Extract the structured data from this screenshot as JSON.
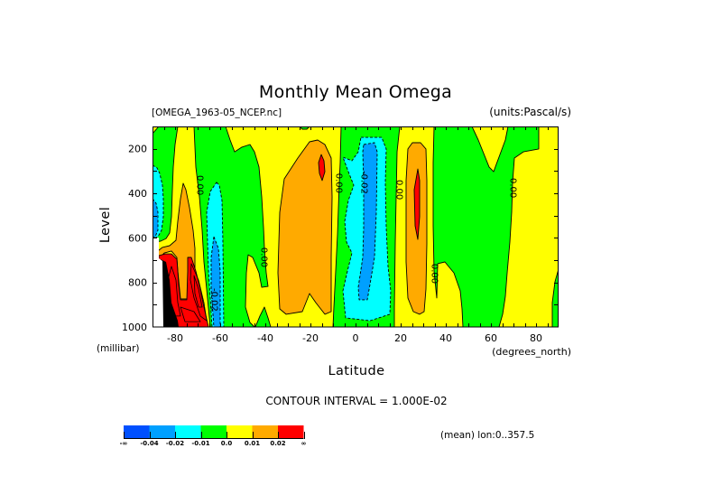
{
  "header": {
    "file_label": "[OMEGA_1963-05_NCEP.nc]",
    "units_label": "(units:Pascal/s)"
  },
  "footer": {
    "contour_interval": "CONTOUR INTERVAL = 1.000E-02",
    "mean_label": "(mean) lon:0..357.5"
  },
  "chart_data": {
    "type": "heatmap",
    "title": "Monthly Mean Omega",
    "xlabel": "Latitude",
    "xunits": "(degrees_north)",
    "ylabel": "Level",
    "yunits": "(millibar)",
    "xlim": [
      -90,
      90
    ],
    "ylim": [
      1000,
      100
    ],
    "xticks": [
      -80,
      -60,
      -40,
      -20,
      0,
      20,
      40,
      60,
      80
    ],
    "yticks": [
      200,
      400,
      600,
      800,
      1000
    ],
    "x_minor_step": 5,
    "y_minor_step": 100,
    "grid": false,
    "legend": "bottom-left",
    "background_band": "yellow",
    "missing_color": "#ffffff",
    "dense_color": "#000000",
    "colorbar": {
      "bands": [
        {
          "name": "blue",
          "color": "#0050ff"
        },
        {
          "name": "sky",
          "color": "#00a0ff"
        },
        {
          "name": "cyan",
          "color": "#00ffff"
        },
        {
          "name": "green",
          "color": "#00ff00"
        },
        {
          "name": "yellow",
          "color": "#ffff00"
        },
        {
          "name": "orange",
          "color": "#ffaa00"
        },
        {
          "name": "red",
          "color": "#ff0000"
        }
      ],
      "labels": [
        "-∞",
        "-0.04",
        "-0.02",
        "-0.01",
        "0.0",
        "0.01",
        "0.02",
        "∞"
      ]
    },
    "regions": [
      {
        "band": "green",
        "lat": [
          -87.2,
          -78.8,
          -80.0,
          -80.8,
          -81.2,
          -81.6,
          -82.4,
          -84.0,
          -86.4,
          -90,
          -90
        ],
        "lev": [
          100,
          100,
          181,
          282,
          384,
          505,
          578,
          603,
          615,
          619,
          132
        ]
      },
      {
        "band": "green",
        "lat": [
          -71.6,
          -57.6,
          -55.6,
          -53.6,
          -50.4,
          -46.8,
          -44.8,
          -42.8,
          -41.6,
          -40.8,
          -40.4,
          -39.6,
          -38.8,
          -41.6,
          -42.8,
          -45.6,
          -47.6,
          -48.4,
          -48.8,
          -46.8,
          -44.8,
          -64.4,
          -66.0,
          -67.2,
          -68.0,
          -69.2,
          -70.8
        ],
        "lev": [
          100,
          100,
          161,
          214,
          193,
          181,
          214,
          282,
          416,
          554,
          647,
          757,
          818,
          822,
          757,
          688,
          676,
          757,
          911,
          980,
          1000,
          1000,
          830,
          708,
          566,
          416,
          282
        ]
      },
      {
        "band": "green",
        "lat": [
          -44.4,
          -42.4,
          -40.4,
          -38.8,
          -37.6
        ],
        "lev": [
          1000,
          951,
          911,
          959,
          1000
        ]
      },
      {
        "band": "green",
        "lat": [
          -24.8,
          -20.4,
          -21.6,
          -23.6
        ],
        "lev": [
          100,
          100,
          112,
          112
        ]
      },
      {
        "band": "green",
        "lat": [
          -6.4,
          19.6,
          18.4,
          17.6,
          17.2,
          17.2,
          -10.0,
          -9.6,
          -8.8,
          -8.0,
          -7.2,
          -6.8
        ],
        "lev": [
          100,
          100,
          214,
          619,
          911,
          1000,
          1000,
          911,
          749,
          586,
          351,
          262
        ]
      },
      {
        "band": "green",
        "lat": [
          34.8,
          51.6,
          54.4,
          59.2,
          61.2,
          62.4,
          66.4,
          67.6,
          81.2,
          81.2,
          74.4,
          70.4,
          69.6,
          69.2,
          68.4,
          67.2,
          66.4,
          65.2,
          63.6,
          47.6,
          47.2,
          46.4,
          43.6,
          39.6,
          36.4,
          36.0,
          34.8,
          34.4,
          34.4
        ],
        "lev": [
          100,
          100,
          161,
          282,
          303,
          270,
          161,
          100,
          100,
          201,
          214,
          242,
          351,
          485,
          619,
          757,
          862,
          943,
          1000,
          1000,
          919,
          838,
          757,
          708,
          716,
          870,
          749,
          546,
          262
        ]
      },
      {
        "band": "green",
        "lat": [
          90,
          88.4,
          87.2,
          87.2,
          90
        ],
        "lev": [
          740,
          797,
          891,
          1000,
          1000
        ]
      },
      {
        "band": "cyan",
        "lat": [
          -90,
          -88.0,
          -86.8,
          -85.6,
          -85.2,
          -85.2,
          -86.0,
          -87.6,
          -90
        ],
        "lev": [
          274,
          286,
          311,
          364,
          424,
          505,
          566,
          595,
          603
        ]
      },
      {
        "band": "cyan",
        "lat": [
          -61.6,
          -60.4,
          -59.2,
          -58.8,
          -58.4,
          -63.6,
          -64.4,
          -65.2,
          -65.6,
          -66.0,
          -64.4
        ],
        "lev": [
          351,
          364,
          432,
          619,
          1000,
          1000,
          870,
          749,
          619,
          485,
          392
        ]
      },
      {
        "band": "cyan",
        "lat": [
          2.4,
          11.6,
          13.6,
          13.2,
          13.6,
          14.4,
          15.6,
          15.2,
          6.4,
          -4.4,
          -5.6,
          -3.6,
          -1.6,
          -4.0,
          -4.8,
          -3.2,
          -0.8,
          -3.2,
          -5.6,
          -1.6,
          1.2
        ],
        "lev": [
          149,
          149,
          201,
          351,
          554,
          728,
          838,
          943,
          972,
          959,
          838,
          749,
          668,
          619,
          526,
          432,
          364,
          303,
          238,
          254,
          214
        ]
      },
      {
        "band": "sky",
        "lat": [
          -90,
          -88.4,
          -87.6,
          -87.6,
          -88.8,
          -90
        ],
        "lev": [
          424,
          445,
          485,
          566,
          595,
          599
        ]
      },
      {
        "band": "sky",
        "lat": [
          -62.8,
          -60.8,
          -60.0,
          -60.0,
          -62.8,
          -64.0,
          -64.0
        ],
        "lev": [
          595,
          647,
          749,
          1000,
          1000,
          830,
          688
        ]
      },
      {
        "band": "sky",
        "lat": [
          3.6,
          8.4,
          9.6,
          9.2,
          8.4,
          6.4,
          5.2,
          1.6,
          1.2,
          3.2,
          3.6,
          3.6,
          3.2
        ],
        "lev": [
          181,
          173,
          214,
          485,
          688,
          809,
          878,
          878,
          822,
          688,
          554,
          351,
          214
        ]
      },
      {
        "band": "orange",
        "lat": [
          -76.4,
          -75.2,
          -73.6,
          -72.0,
          -71.2,
          -71.2,
          -71.6,
          -73.6,
          -77.6,
          -78.8,
          -79.2,
          -81.6,
          -84.8,
          -87.2,
          -87.6,
          -85.6,
          -82.4,
          -79.6,
          -78.8,
          -77.6
        ],
        "lev": [
          355,
          384,
          465,
          566,
          647,
          749,
          850,
          874,
          874,
          749,
          688,
          659,
          668,
          696,
          659,
          643,
          635,
          611,
          526,
          424
        ]
      },
      {
        "band": "orange",
        "lat": [
          -20.4,
          -16.8,
          -13.6,
          -10.8,
          -10.4,
          -10.8,
          -10.8,
          -13.6,
          -17.6,
          -20.4,
          -23.6,
          -30.8,
          -33.6,
          -34.4,
          -33.6,
          -31.6,
          -25.6
        ],
        "lev": [
          169,
          161,
          181,
          242,
          416,
          688,
          931,
          943,
          891,
          850,
          931,
          943,
          919,
          757,
          485,
          335,
          242
        ]
      },
      {
        "band": "orange",
        "lat": [
          23.2,
          25.2,
          28.8,
          31.2,
          31.6,
          31.6,
          31.2,
          30.4,
          28.4,
          25.6,
          23.2,
          22.4,
          22.4
        ],
        "lev": [
          201,
          173,
          173,
          201,
          343,
          627,
          830,
          931,
          943,
          931,
          870,
          708,
          343
        ]
      },
      {
        "band": "red",
        "lat": [
          -87.2,
          -84.4,
          -81.6,
          -79.2,
          -78.8,
          -78.4,
          -77.6,
          -74.8,
          -74.4,
          -74.4,
          -72.8,
          -70.8,
          -68.8,
          -67.2,
          -65.2,
          -87.2
        ],
        "lev": [
          680,
          672,
          672,
          696,
          749,
          809,
          878,
          878,
          749,
          688,
          688,
          749,
          830,
          911,
          1000,
          1000
        ]
      },
      {
        "band": "red",
        "lat": [
          -15.2,
          -14.0,
          -13.6,
          -14.8,
          -16.0,
          -16.4
        ],
        "lev": [
          226,
          254,
          303,
          343,
          311,
          262
        ]
      },
      {
        "band": "red",
        "lat": [
          27.6,
          28.4,
          28.4,
          27.6,
          26.4,
          26.0
        ],
        "lev": [
          291,
          343,
          505,
          607,
          546,
          384
        ]
      },
      {
        "band": "dense",
        "lat": [
          -86.4,
          -84.0,
          -82.4,
          -81.6,
          -78.8,
          -78.4,
          -86.4
        ],
        "lev": [
          696,
          708,
          789,
          891,
          972,
          1000,
          1000
        ]
      },
      {
        "band": "missing",
        "lat": [
          -90,
          -87.2,
          -87.2,
          -85.6,
          -85.2,
          -90
        ],
        "lev": [
          599,
          599,
          692,
          704,
          1000,
          1000
        ]
      }
    ],
    "contour_lines": [
      {
        "lat": [
          -72.8,
          -69.6,
          -67.2,
          -66.0,
          -68.8,
          -71.6,
          -73.2
        ],
        "lev": [
          716,
          789,
          891,
          972,
          951,
          870,
          789
        ]
      },
      {
        "lat": [
          -71.6,
          -69.6,
          -68.0,
          -69.6,
          -71.2
        ],
        "lev": [
          769,
          830,
          911,
          911,
          850
        ]
      },
      {
        "lat": [
          -81.6,
          -79.6,
          -78.8,
          -77.6,
          -80.8,
          -82.4,
          -83.2
        ],
        "lev": [
          728,
          789,
          891,
          951,
          951,
          870,
          789
        ]
      },
      {
        "lat": [
          -77.6,
          -71.6,
          -68.8,
          -75.6
        ],
        "lev": [
          911,
          931,
          976,
          976
        ]
      }
    ],
    "contour_labels": [
      {
        "text": "0.00",
        "lat": -69.2,
        "lev": 364
      },
      {
        "text": "0.00",
        "lat": -40.8,
        "lev": 688
      },
      {
        "text": "-0.02",
        "lat": -62.8,
        "lev": 878
      },
      {
        "text": "0.00",
        "lat": -7.6,
        "lev": 355
      },
      {
        "text": "-0.02",
        "lat": 3.6,
        "lev": 351
      },
      {
        "text": "0.00",
        "lat": 19.2,
        "lev": 384
      },
      {
        "text": "0.00",
        "lat": 34.8,
        "lev": 761
      },
      {
        "text": "0.00",
        "lat": 69.6,
        "lev": 376
      }
    ]
  }
}
